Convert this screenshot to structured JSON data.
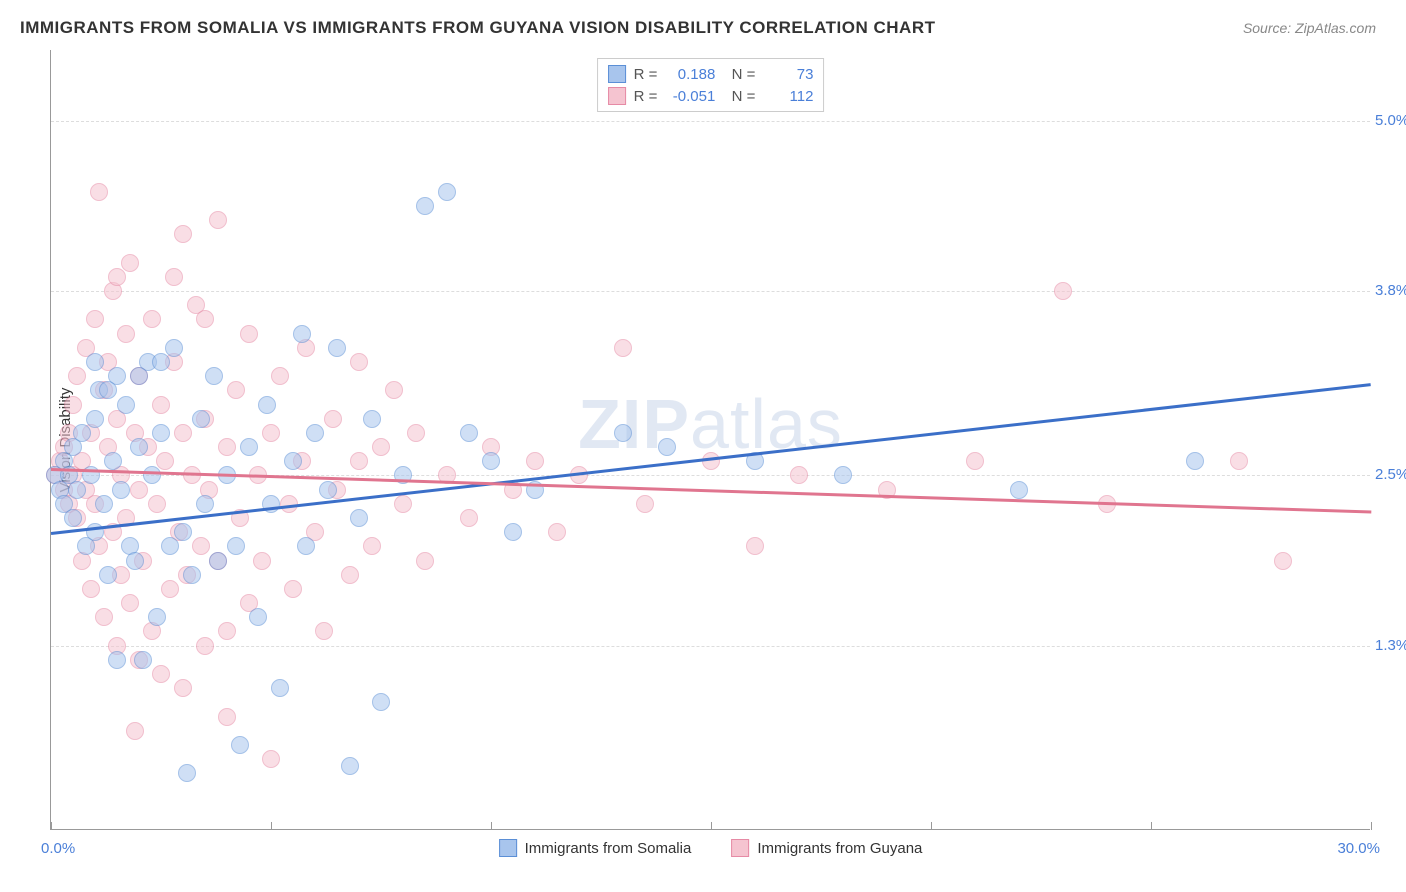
{
  "title": "IMMIGRANTS FROM SOMALIA VS IMMIGRANTS FROM GUYANA VISION DISABILITY CORRELATION CHART",
  "source": "Source: ZipAtlas.com",
  "watermark": {
    "part1": "ZIP",
    "part2": "atlas"
  },
  "y_axis_label": "Vision Disability",
  "chart": {
    "type": "scatter",
    "xlim": [
      0,
      30
    ],
    "ylim": [
      0,
      5.5
    ],
    "x_min_label": "0.0%",
    "x_max_label": "30.0%",
    "y_ticks": [
      {
        "value": 1.3,
        "label": "1.3%"
      },
      {
        "value": 2.5,
        "label": "2.5%"
      },
      {
        "value": 3.8,
        "label": "3.8%"
      },
      {
        "value": 5.0,
        "label": "5.0%"
      }
    ],
    "x_tick_positions": [
      0,
      5,
      10,
      15,
      20,
      25,
      30
    ],
    "grid_color": "#dddddd",
    "background_color": "#ffffff",
    "point_radius": 9,
    "point_opacity": 0.55,
    "series": [
      {
        "name": "Immigrants from Somalia",
        "fill_color": "#a8c5ed",
        "stroke_color": "#5b8fd6",
        "trend_color": "#3b6fc8",
        "R": "0.188",
        "N": "73",
        "trend": {
          "x1": 0,
          "y1": 2.1,
          "x2": 30,
          "y2": 3.15
        },
        "points": [
          [
            0.1,
            2.5
          ],
          [
            0.2,
            2.4
          ],
          [
            0.3,
            2.6
          ],
          [
            0.3,
            2.3
          ],
          [
            0.4,
            2.5
          ],
          [
            0.5,
            2.2
          ],
          [
            0.5,
            2.7
          ],
          [
            0.6,
            2.4
          ],
          [
            0.7,
            2.8
          ],
          [
            0.8,
            2.0
          ],
          [
            0.9,
            2.5
          ],
          [
            1.0,
            2.9
          ],
          [
            1.0,
            2.1
          ],
          [
            1.1,
            3.1
          ],
          [
            1.2,
            2.3
          ],
          [
            1.3,
            1.8
          ],
          [
            1.4,
            2.6
          ],
          [
            1.5,
            3.2
          ],
          [
            1.5,
            1.2
          ],
          [
            1.6,
            2.4
          ],
          [
            1.7,
            3.0
          ],
          [
            1.8,
            2.0
          ],
          [
            1.9,
            1.9
          ],
          [
            2.0,
            2.7
          ],
          [
            2.1,
            1.2
          ],
          [
            2.2,
            3.3
          ],
          [
            2.3,
            2.5
          ],
          [
            2.4,
            1.5
          ],
          [
            2.5,
            2.8
          ],
          [
            2.7,
            2.0
          ],
          [
            2.8,
            3.4
          ],
          [
            3.0,
            2.1
          ],
          [
            3.1,
            0.4
          ],
          [
            3.2,
            1.8
          ],
          [
            3.4,
            2.9
          ],
          [
            3.5,
            2.3
          ],
          [
            3.7,
            3.2
          ],
          [
            3.8,
            1.9
          ],
          [
            4.0,
            2.5
          ],
          [
            4.2,
            2.0
          ],
          [
            4.3,
            0.6
          ],
          [
            4.5,
            2.7
          ],
          [
            4.7,
            1.5
          ],
          [
            4.9,
            3.0
          ],
          [
            5.0,
            2.3
          ],
          [
            5.2,
            1.0
          ],
          [
            5.5,
            2.6
          ],
          [
            5.7,
            3.5
          ],
          [
            5.8,
            2.0
          ],
          [
            6.0,
            2.8
          ],
          [
            6.3,
            2.4
          ],
          [
            6.5,
            3.4
          ],
          [
            6.8,
            0.45
          ],
          [
            7.0,
            2.2
          ],
          [
            7.3,
            2.9
          ],
          [
            7.5,
            0.9
          ],
          [
            8.0,
            2.5
          ],
          [
            8.5,
            4.4
          ],
          [
            9.0,
            4.5
          ],
          [
            9.5,
            2.8
          ],
          [
            10.0,
            2.6
          ],
          [
            10.5,
            2.1
          ],
          [
            11.0,
            2.4
          ],
          [
            13.0,
            2.8
          ],
          [
            14.0,
            2.7
          ],
          [
            16.0,
            2.6
          ],
          [
            18.0,
            2.5
          ],
          [
            22.0,
            2.4
          ],
          [
            26.0,
            2.6
          ],
          [
            1.0,
            3.3
          ],
          [
            1.3,
            3.1
          ],
          [
            2.0,
            3.2
          ],
          [
            2.5,
            3.3
          ]
        ]
      },
      {
        "name": "Immigrants from Guyana",
        "fill_color": "#f5c4d0",
        "stroke_color": "#e68aa5",
        "trend_color": "#e0758f",
        "R": "-0.051",
        "N": "112",
        "trend": {
          "x1": 0,
          "y1": 2.55,
          "x2": 30,
          "y2": 2.25
        },
        "points": [
          [
            0.1,
            2.5
          ],
          [
            0.2,
            2.6
          ],
          [
            0.3,
            2.4
          ],
          [
            0.3,
            2.7
          ],
          [
            0.4,
            2.3
          ],
          [
            0.4,
            2.8
          ],
          [
            0.5,
            2.5
          ],
          [
            0.5,
            3.0
          ],
          [
            0.6,
            2.2
          ],
          [
            0.6,
            3.2
          ],
          [
            0.7,
            2.6
          ],
          [
            0.7,
            1.9
          ],
          [
            0.8,
            3.4
          ],
          [
            0.8,
            2.4
          ],
          [
            0.9,
            2.8
          ],
          [
            0.9,
            1.7
          ],
          [
            1.0,
            3.6
          ],
          [
            1.0,
            2.3
          ],
          [
            1.1,
            4.5
          ],
          [
            1.1,
            2.0
          ],
          [
            1.2,
            3.1
          ],
          [
            1.2,
            1.5
          ],
          [
            1.3,
            2.7
          ],
          [
            1.3,
            3.3
          ],
          [
            1.4,
            2.1
          ],
          [
            1.4,
            3.8
          ],
          [
            1.5,
            1.3
          ],
          [
            1.5,
            2.9
          ],
          [
            1.6,
            2.5
          ],
          [
            1.6,
            1.8
          ],
          [
            1.7,
            3.5
          ],
          [
            1.7,
            2.2
          ],
          [
            1.8,
            4.0
          ],
          [
            1.8,
            1.6
          ],
          [
            1.9,
            2.8
          ],
          [
            1.9,
            0.7
          ],
          [
            2.0,
            3.2
          ],
          [
            2.0,
            2.4
          ],
          [
            2.1,
            1.9
          ],
          [
            2.2,
            2.7
          ],
          [
            2.3,
            3.6
          ],
          [
            2.3,
            1.4
          ],
          [
            2.4,
            2.3
          ],
          [
            2.5,
            3.0
          ],
          [
            2.5,
            1.1
          ],
          [
            2.6,
            2.6
          ],
          [
            2.7,
            1.7
          ],
          [
            2.8,
            3.3
          ],
          [
            2.9,
            2.1
          ],
          [
            3.0,
            2.8
          ],
          [
            3.0,
            4.2
          ],
          [
            3.1,
            1.8
          ],
          [
            3.2,
            2.5
          ],
          [
            3.3,
            3.7
          ],
          [
            3.4,
            2.0
          ],
          [
            3.5,
            2.9
          ],
          [
            3.5,
            1.3
          ],
          [
            3.6,
            2.4
          ],
          [
            3.8,
            4.3
          ],
          [
            3.8,
            1.9
          ],
          [
            4.0,
            2.7
          ],
          [
            4.0,
            0.8
          ],
          [
            4.2,
            3.1
          ],
          [
            4.3,
            2.2
          ],
          [
            4.5,
            1.6
          ],
          [
            4.5,
            3.5
          ],
          [
            4.7,
            2.5
          ],
          [
            4.8,
            1.9
          ],
          [
            5.0,
            2.8
          ],
          [
            5.0,
            0.5
          ],
          [
            5.2,
            3.2
          ],
          [
            5.4,
            2.3
          ],
          [
            5.5,
            1.7
          ],
          [
            5.7,
            2.6
          ],
          [
            5.8,
            3.4
          ],
          [
            6.0,
            2.1
          ],
          [
            6.2,
            1.4
          ],
          [
            6.4,
            2.9
          ],
          [
            6.5,
            2.4
          ],
          [
            6.8,
            1.8
          ],
          [
            7.0,
            3.3
          ],
          [
            7.0,
            2.6
          ],
          [
            7.3,
            2.0
          ],
          [
            7.5,
            2.7
          ],
          [
            7.8,
            3.1
          ],
          [
            8.0,
            2.3
          ],
          [
            8.3,
            2.8
          ],
          [
            8.5,
            1.9
          ],
          [
            9.0,
            2.5
          ],
          [
            9.5,
            2.2
          ],
          [
            10.0,
            2.7
          ],
          [
            10.5,
            2.4
          ],
          [
            11.0,
            2.6
          ],
          [
            11.5,
            2.1
          ],
          [
            12.0,
            2.5
          ],
          [
            13.0,
            3.4
          ],
          [
            13.5,
            2.3
          ],
          [
            15.0,
            2.6
          ],
          [
            16.0,
            2.0
          ],
          [
            17.0,
            2.5
          ],
          [
            19.0,
            2.4
          ],
          [
            21.0,
            2.6
          ],
          [
            23.0,
            3.8
          ],
          [
            24.0,
            2.3
          ],
          [
            27.0,
            2.6
          ],
          [
            28.0,
            1.9
          ],
          [
            2.0,
            1.2
          ],
          [
            3.0,
            1.0
          ],
          [
            4.0,
            1.4
          ],
          [
            1.5,
            3.9
          ],
          [
            2.8,
            3.9
          ],
          [
            3.5,
            3.6
          ]
        ]
      }
    ]
  },
  "legend": {
    "item1": "Immigrants from Somalia",
    "item2": "Immigrants from Guyana"
  }
}
